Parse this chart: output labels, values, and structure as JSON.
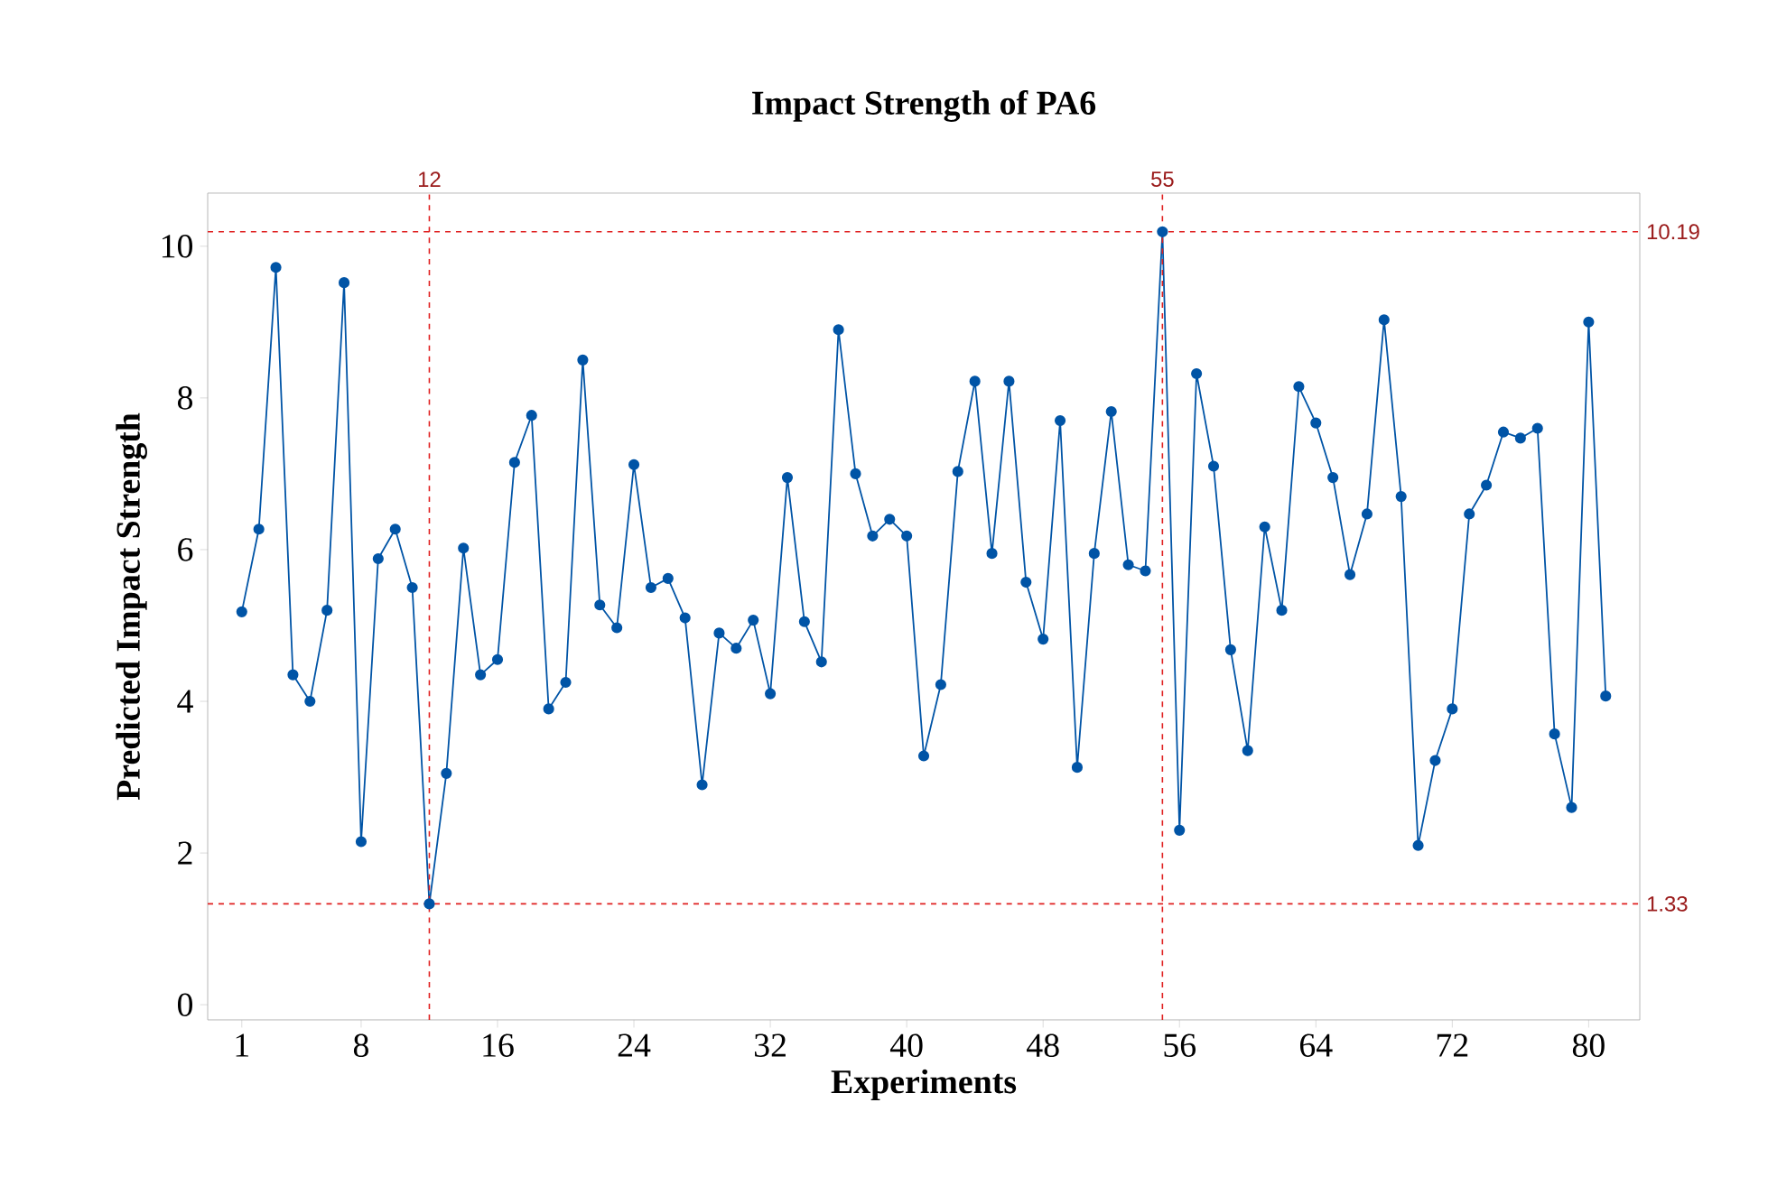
{
  "chart_data": {
    "type": "line",
    "title": "Impact Strength of PA6",
    "xlabel": "Experiments",
    "ylabel": "Predicted Impact Strength",
    "x": [
      1,
      2,
      3,
      4,
      5,
      6,
      7,
      8,
      9,
      10,
      11,
      12,
      13,
      14,
      15,
      16,
      17,
      18,
      19,
      20,
      21,
      22,
      23,
      24,
      25,
      26,
      27,
      28,
      29,
      30,
      31,
      32,
      33,
      34,
      35,
      36,
      37,
      38,
      39,
      40,
      41,
      42,
      43,
      44,
      45,
      46,
      47,
      48,
      49,
      50,
      51,
      52,
      53,
      54,
      55,
      56,
      57,
      58,
      59,
      60,
      61,
      62,
      63,
      64,
      65,
      66,
      67,
      68,
      69,
      70,
      71,
      72,
      73,
      74,
      75,
      76,
      77,
      78,
      79,
      80,
      81
    ],
    "series": [
      {
        "color": "#0054a6",
        "values": [
          5.18,
          6.27,
          9.72,
          4.35,
          4.0,
          5.2,
          9.52,
          2.15,
          5.88,
          6.27,
          5.5,
          1.33,
          3.05,
          6.02,
          4.35,
          4.55,
          7.15,
          7.77,
          3.9,
          4.25,
          8.5,
          5.27,
          4.97,
          7.12,
          5.5,
          5.62,
          5.1,
          2.9,
          4.9,
          4.7,
          5.07,
          4.1,
          6.95,
          5.05,
          4.52,
          8.9,
          7.0,
          6.18,
          6.4,
          6.18,
          3.28,
          4.22,
          7.03,
          8.22,
          5.95,
          8.22,
          5.57,
          4.82,
          7.7,
          3.13,
          5.95,
          7.82,
          5.8,
          5.72,
          10.19,
          2.3,
          8.32,
          7.1,
          4.68,
          3.35,
          6.3,
          5.2,
          8.15,
          7.67,
          6.95,
          5.67,
          6.47,
          9.03,
          6.7,
          2.1,
          3.22,
          3.9,
          6.47,
          6.85,
          7.55,
          7.47,
          7.6,
          3.57,
          2.6,
          9.0,
          4.07
        ]
      }
    ],
    "xlim": [
      -1,
      83
    ],
    "ylim": [
      -0.2,
      10.7
    ],
    "xticks": [
      1,
      8,
      16,
      24,
      32,
      40,
      48,
      56,
      64,
      72,
      80
    ],
    "yticks": [
      0,
      2,
      4,
      6,
      8,
      10
    ],
    "ref_lines": [
      {
        "axis": "x",
        "value": 12,
        "label": "12",
        "color": "#e02020",
        "line_style": "dashed"
      },
      {
        "axis": "x",
        "value": 55,
        "label": "55",
        "color": "#e02020",
        "line_style": "dashed"
      },
      {
        "axis": "y",
        "value": 10.19,
        "label": "10.19",
        "color": "#e02020",
        "line_style": "dashed"
      },
      {
        "axis": "y",
        "value": 1.33,
        "label": "1.33",
        "color": "#e02020",
        "line_style": "dashed"
      }
    ],
    "marker": "circle",
    "line_style": "solid",
    "grid": false
  }
}
